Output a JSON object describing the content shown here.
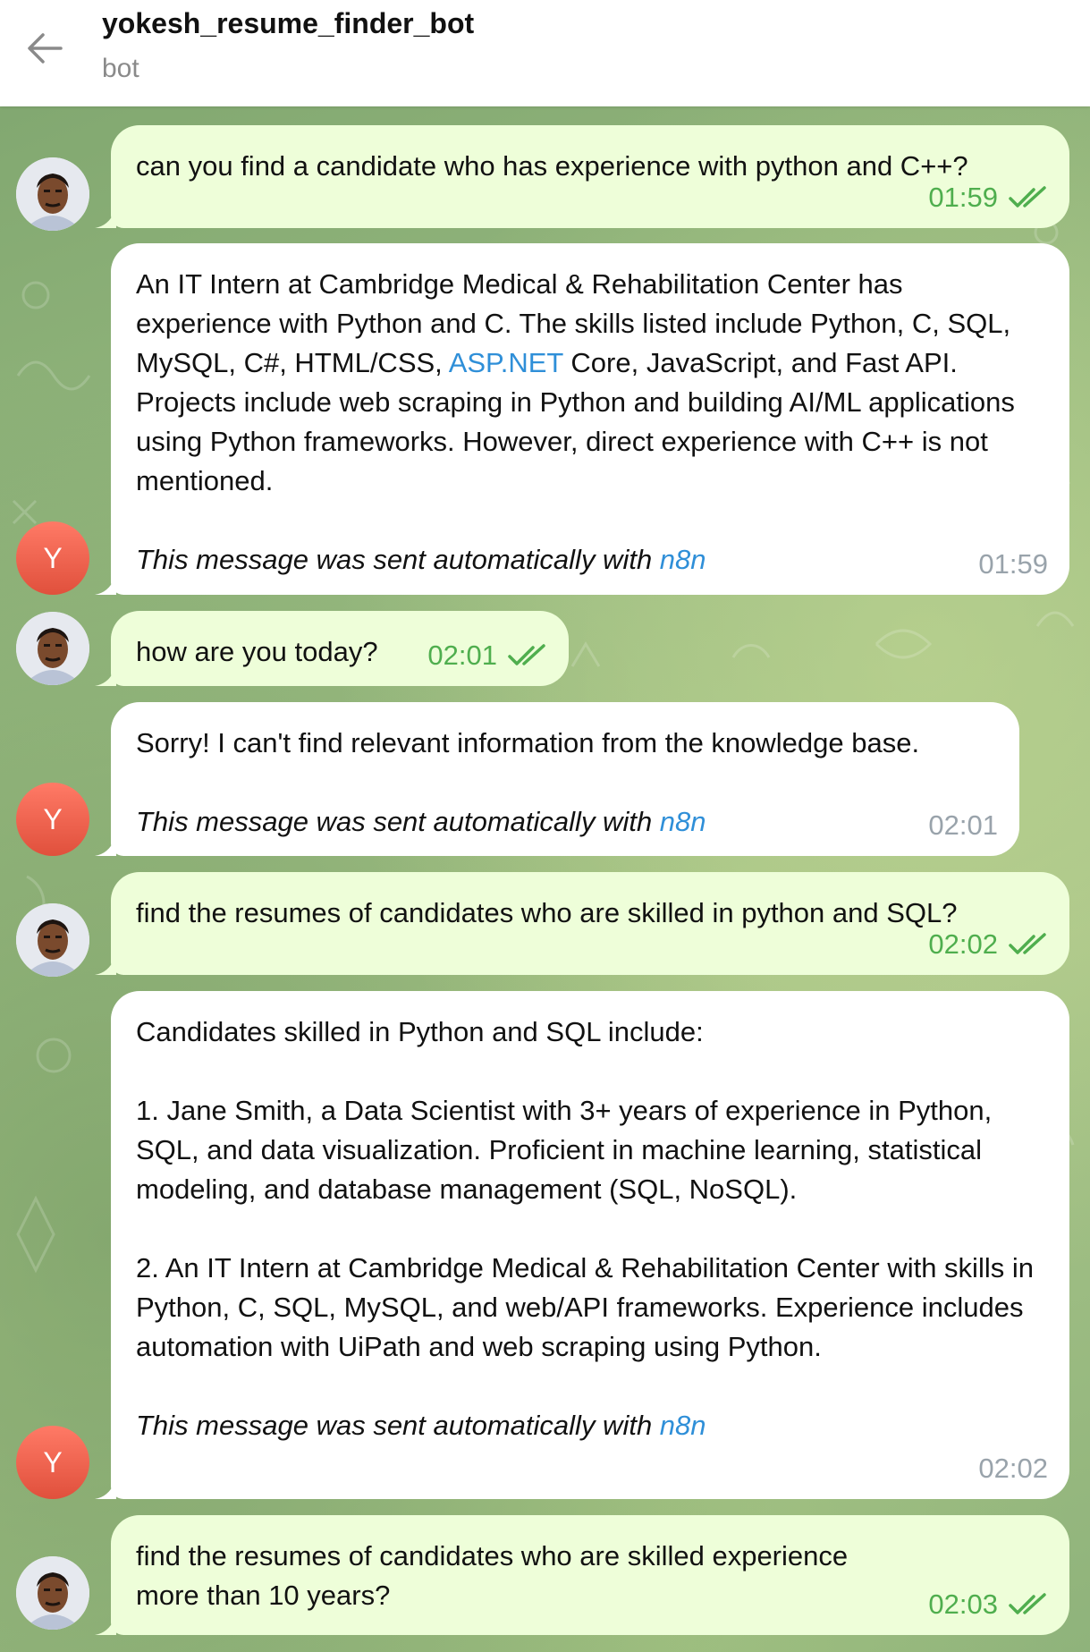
{
  "header": {
    "title": "yokesh_resume_finder_bot",
    "subtitle": "bot"
  },
  "bot_avatar_letter": "Y",
  "colors": {
    "outgoing_bubble": "#eefed9",
    "incoming_bubble": "#ffffff",
    "check_green": "#4fae4e",
    "link_blue": "#2f8fd8",
    "bot_avatar": "#e55a46"
  },
  "messages": [
    {
      "id": "m1",
      "direction": "out",
      "text": "can you find a candidate who has experience with python and C++?",
      "time": "01:59",
      "status": "read"
    },
    {
      "id": "m2",
      "direction": "in",
      "text_before_link": "An IT Intern at Cambridge Medical & Rehabilitation Center has experience with Python and C. The skills listed include Python, C, SQL, MySQL, C#, HTML/CSS, ",
      "link": "ASP.NET",
      "text_after_link": " Core, JavaScript, and Fast API. Projects include web scraping in Python and building AI/ML applications using Python frameworks. However, direct experience with C++ is not mentioned.",
      "footer_text": "This message was sent automatically with ",
      "footer_link": "n8n",
      "time": "01:59"
    },
    {
      "id": "m3",
      "direction": "out",
      "text": "how are you today?",
      "time": "02:01",
      "status": "read"
    },
    {
      "id": "m4",
      "direction": "in",
      "text": "Sorry! I can't find relevant information from the knowledge base.",
      "footer_text": "This message was sent automatically with ",
      "footer_link": "n8n",
      "time": "02:01"
    },
    {
      "id": "m5",
      "direction": "out",
      "text": "find the resumes of candidates who are skilled in python and SQL?",
      "time": "02:02",
      "status": "read"
    },
    {
      "id": "m6",
      "direction": "in",
      "text": "Candidates skilled in Python and SQL include:\n\n1. Jane Smith, a Data Scientist with 3+ years of experience in Python, SQL, and data visualization. Proficient in machine learning, statistical modeling, and database management (SQL, NoSQL).\n\n2. An IT Intern at Cambridge Medical & Rehabilitation Center with skills in Python, C, SQL, MySQL, and web/API frameworks. Experience includes automation with UiPath and web scraping using Python.",
      "footer_text": "This message was sent automatically with ",
      "footer_link": "n8n",
      "time": "02:02"
    },
    {
      "id": "m7",
      "direction": "out",
      "text": "find the resumes of candidates who are skilled experience more than 10 years?",
      "time": "02:03",
      "status": "read"
    }
  ]
}
